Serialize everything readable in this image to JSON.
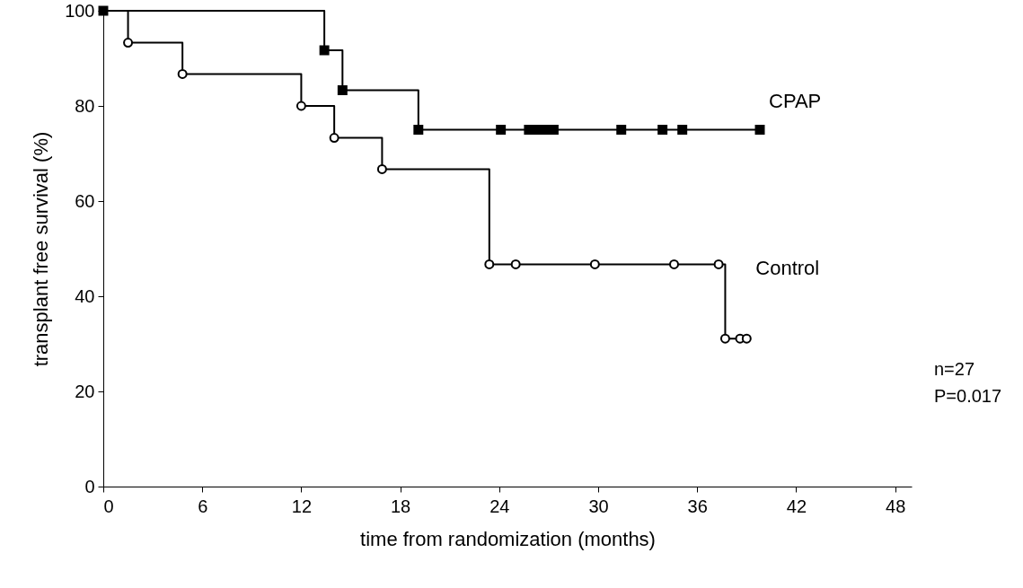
{
  "chart_data": {
    "type": "step",
    "xlabel": "time from randomization (months)",
    "ylabel": "transplant free survival (%)",
    "xlim": [
      0,
      49
    ],
    "xticks": [
      0,
      6,
      12,
      18,
      24,
      30,
      36,
      42,
      48
    ],
    "ylim": [
      0,
      100
    ],
    "yticks": [
      0,
      20,
      40,
      60,
      80,
      100
    ],
    "grid": false,
    "annotations": [
      "n=27",
      "P=0.017"
    ],
    "series": [
      {
        "name": "CPAP",
        "color": "#000000",
        "marker": "square",
        "x": [
          0,
          13.4,
          14.5,
          19.1,
          24.1,
          25.8,
          26.3,
          26.8,
          27.3,
          31.4,
          33.9,
          35.1,
          39.8
        ],
        "values": [
          100,
          91.7,
          83.3,
          75,
          75,
          75,
          75,
          75,
          75,
          75,
          75,
          75,
          75
        ]
      },
      {
        "name": "Control",
        "color": "#000000",
        "marker": "circle",
        "x": [
          0,
          1.5,
          4.8,
          12,
          14,
          16.9,
          23.4,
          25,
          29.8,
          34.6,
          37.3,
          37.7,
          38.6,
          39
        ],
        "values": [
          100,
          93.3,
          86.7,
          80,
          73.3,
          66.7,
          46.7,
          46.7,
          46.7,
          46.7,
          46.7,
          31.1,
          31.1,
          31.1
        ]
      }
    ]
  }
}
